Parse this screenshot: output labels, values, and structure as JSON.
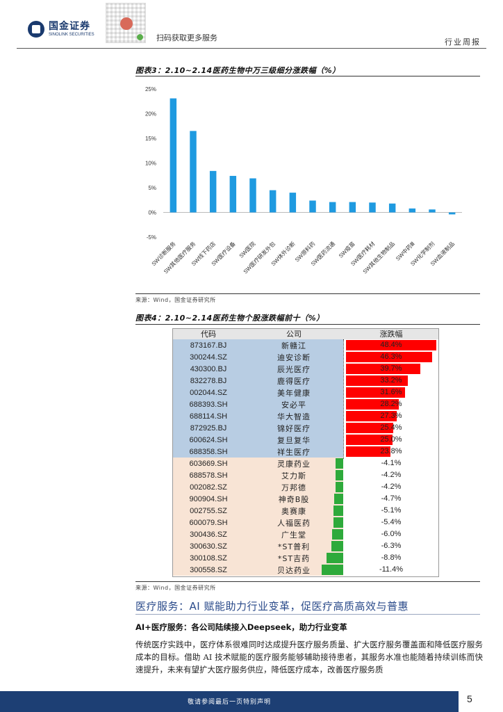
{
  "header": {
    "brand_cn": "国金证券",
    "brand_en": "SINOLINK SECURITIES",
    "qr_caption": "扫码获取更多服务",
    "doc_type": "行业周报"
  },
  "figure3": {
    "title": "图表3：2.10~2.14医药生物中万三级细分涨跌幅（%）",
    "source": "来源：Wind，国金证券研究所"
  },
  "chart_data": {
    "type": "bar",
    "title": "2.10~2.14医药生物中万三级细分涨跌幅（%）",
    "categories": [
      "SW诊断服务",
      "SW其他医疗服务",
      "SW线下药店",
      "SW医疗设备",
      "SW医院",
      "SW医疗研发外包",
      "SW体外诊断",
      "SW原料药",
      "SW医药流通",
      "SW疫苗",
      "SW医疗耗材",
      "SW其他生物制品",
      "SW中药Ⅲ",
      "SW化学制剂",
      "SW血液制品"
    ],
    "values": [
      23.1,
      16.5,
      8.4,
      7.4,
      6.9,
      4.5,
      4.0,
      2.4,
      2.1,
      2.1,
      2.0,
      1.8,
      0.8,
      0.6,
      -0.4
    ],
    "ylim": [
      -5,
      25
    ],
    "yticks": [
      25,
      20,
      15,
      10,
      5,
      0,
      -5
    ],
    "ytick_labels": [
      "25%",
      "20%",
      "15%",
      "10%",
      "5%",
      "0%",
      "-5%"
    ],
    "xlabel": "",
    "ylabel": "",
    "color": "#1f9ae0"
  },
  "figure4": {
    "title": "图表4：2.10~2.14医药生物个股涨跌幅前十（%）",
    "source": "来源：Wind，国金证券研究所",
    "columns": [
      "代码",
      "公司",
      "涨跌幅"
    ],
    "rows": [
      {
        "code": "873167.BJ",
        "name": "新赣江",
        "value": 48.4,
        "label": "48.4%"
      },
      {
        "code": "300244.SZ",
        "name": "迪安诊断",
        "value": 46.3,
        "label": "46.3%"
      },
      {
        "code": "430300.BJ",
        "name": "辰光医疗",
        "value": 39.7,
        "label": "39.7%"
      },
      {
        "code": "832278.BJ",
        "name": "鹿得医疗",
        "value": 33.2,
        "label": "33.2%"
      },
      {
        "code": "002044.SZ",
        "name": "美年健康",
        "value": 31.6,
        "label": "31.6%"
      },
      {
        "code": "688393.SH",
        "name": "安必平",
        "value": 28.2,
        "label": "28.2%"
      },
      {
        "code": "688114.SH",
        "name": "华大智造",
        "value": 27.3,
        "label": "27.3%"
      },
      {
        "code": "872925.BJ",
        "name": "锦好医疗",
        "value": 25.4,
        "label": "25.4%"
      },
      {
        "code": "600624.SH",
        "name": "复旦复华",
        "value": 25.0,
        "label": "25.0%"
      },
      {
        "code": "688358.SH",
        "name": "祥生医疗",
        "value": 23.8,
        "label": "23.8%"
      },
      {
        "code": "603669.SH",
        "name": "灵康药业",
        "value": -4.1,
        "label": "-4.1%"
      },
      {
        "code": "688578.SH",
        "name": "艾力斯",
        "value": -4.2,
        "label": "-4.2%"
      },
      {
        "code": "002082.SZ",
        "name": "万邦德",
        "value": -4.2,
        "label": "-4.2%"
      },
      {
        "code": "900904.SH",
        "name": "神奇B股",
        "value": -4.7,
        "label": "-4.7%"
      },
      {
        "code": "002755.SZ",
        "name": "奥赛康",
        "value": -5.1,
        "label": "-5.1%"
      },
      {
        "code": "600079.SH",
        "name": "人福医药",
        "value": -5.4,
        "label": "-5.4%"
      },
      {
        "code": "300436.SZ",
        "name": "广生堂",
        "value": -6.0,
        "label": "-6.0%"
      },
      {
        "code": "300630.SZ",
        "name": "*ST普利",
        "value": -6.3,
        "label": "-6.3%"
      },
      {
        "code": "300108.SZ",
        "name": "*ST吉药",
        "value": -8.8,
        "label": "-8.8%"
      },
      {
        "code": "300558.SZ",
        "name": "贝达药业",
        "value": -11.4,
        "label": "-11.4%"
      }
    ]
  },
  "section": {
    "heading": "医疗服务：AI 赋能助力行业变革，促医疗高质高效与普惠",
    "subheading": "AI+医疗服务：各公司陆续接入Deepseek，助力行业变革",
    "paragraph": "传统医疗实践中，医疗体系很难同时达成提升医疗服务质量、扩大医疗服务覆盖面和降低医疗服务成本的目标。借助 AI 技术赋能的医疗服务能够辅助接待患者，其服务水准也能随着持续训练而快速提升，未来有望扩大医疗服务供应，降低医疗成本，改善医疗服务质"
  },
  "footer": {
    "disclaimer": "敬请参阅最后一页特别声明",
    "page": "5"
  }
}
